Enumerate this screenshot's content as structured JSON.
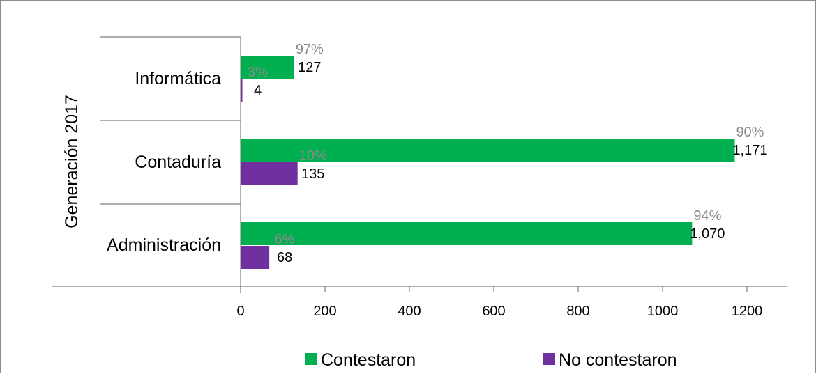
{
  "chart_data": {
    "type": "bar",
    "orientation": "horizontal",
    "group_label": "Generación 2017",
    "categories": [
      "Informática",
      "Contaduría",
      "Administración"
    ],
    "series": [
      {
        "name": "Contestaron",
        "color": "#00b050",
        "values": [
          127,
          1171,
          1070
        ],
        "value_labels": [
          "127",
          "1,171",
          "1,070"
        ],
        "percent_labels": [
          "97%",
          "90%",
          "94%"
        ]
      },
      {
        "name": "No contestaron",
        "color": "#7030a0",
        "values": [
          4,
          135,
          68
        ],
        "value_labels": [
          "4",
          "135",
          "68"
        ],
        "percent_labels": [
          "3%",
          "10%",
          "6%"
        ]
      }
    ],
    "xlim": [
      0,
      1300
    ],
    "xticks": [
      "0",
      "200",
      "400",
      "600",
      "800",
      "1000",
      "1200"
    ],
    "xtick_values": [
      0,
      200,
      400,
      600,
      800,
      1000,
      1200
    ],
    "legend_position": "bottom",
    "grid": false
  }
}
